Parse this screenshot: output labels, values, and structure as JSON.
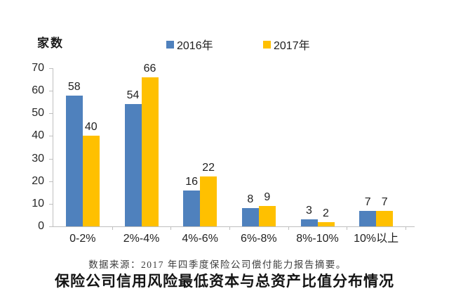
{
  "chart_data": {
    "type": "bar",
    "title": "保险公司信用风险最低资本与总资产比值分布情况",
    "source_note": "数据来源：2017 年四季度保险公司偿付能力报告摘要。",
    "y_axis_title": "家数",
    "categories": [
      "0-2%",
      "2%-4%",
      "4%-6%",
      "6%-8%",
      "8%-10%",
      "10%以上"
    ],
    "series": [
      {
        "name": "2016年",
        "color": "#4F81BD",
        "values": [
          58,
          54,
          16,
          8,
          3,
          7
        ]
      },
      {
        "name": "2017年",
        "color": "#FFC000",
        "values": [
          40,
          66,
          22,
          9,
          2,
          7
        ]
      }
    ],
    "ylim": [
      0,
      70
    ],
    "yticks": [
      0,
      10,
      20,
      30,
      40,
      50,
      60,
      70
    ],
    "grid": false,
    "legend_position": "top",
    "axis_color": "#BFBFBF",
    "label_color": "#1f1f1f"
  }
}
